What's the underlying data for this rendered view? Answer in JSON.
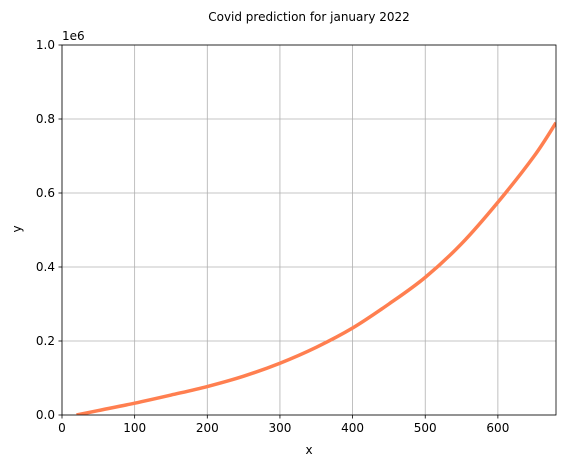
{
  "chart_data": {
    "type": "line",
    "title": "Covid prediction for january 2022",
    "xlabel": "x",
    "ylabel": "y",
    "y_offset_text": "1e6",
    "xlim": [
      0,
      680
    ],
    "ylim": [
      0,
      1000000
    ],
    "x_ticks": [
      0,
      100,
      200,
      300,
      400,
      500,
      600
    ],
    "x_tick_labels": [
      "0",
      "100",
      "200",
      "300",
      "400",
      "500",
      "600"
    ],
    "y_ticks": [
      0,
      200000,
      400000,
      600000,
      800000,
      1000000
    ],
    "y_tick_labels": [
      "0.0",
      "0.2",
      "0.4",
      "0.6",
      "0.8",
      "1.0"
    ],
    "grid": true,
    "legend": "none",
    "series": [
      {
        "color": "#ff7f50",
        "x": [
          20,
          50,
          100,
          150,
          200,
          250,
          300,
          350,
          400,
          450,
          500,
          550,
          600,
          650,
          680
        ],
        "y": [
          0,
          12000,
          32000,
          54000,
          77000,
          105000,
          140000,
          183000,
          235000,
          300000,
          372000,
          463000,
          575000,
          700000,
          790000
        ]
      }
    ]
  }
}
